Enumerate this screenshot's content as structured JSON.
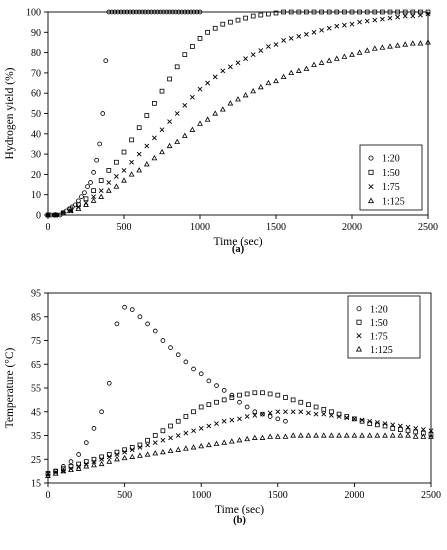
{
  "chart_data": [
    {
      "type": "scatter",
      "panel_label": "(a)",
      "xlabel": "Time (sec)",
      "ylabel": "Hydrogen yield (%)",
      "xlim": [
        0,
        2500
      ],
      "ylim": [
        0,
        100
      ],
      "xticks": [
        0,
        500,
        1000,
        1500,
        2000,
        2500
      ],
      "yticks": [
        0,
        10,
        20,
        30,
        40,
        50,
        60,
        70,
        80,
        90,
        100
      ],
      "grid": false,
      "legend_position": "bottom-right",
      "series": [
        {
          "name": "1:20",
          "marker": "circle",
          "x": [
            0,
            20,
            40,
            60,
            80,
            100,
            120,
            140,
            160,
            180,
            200,
            220,
            240,
            260,
            280,
            300,
            320,
            340,
            360,
            380,
            400,
            420,
            440,
            460,
            480,
            500,
            520,
            540,
            560,
            580,
            600,
            620,
            640,
            660,
            680,
            700,
            720,
            740,
            760,
            780,
            800,
            820,
            840,
            860,
            880,
            900,
            920,
            940,
            960,
            980,
            1000
          ],
          "y": [
            0,
            0,
            0,
            0,
            0,
            1,
            2,
            3,
            4,
            5,
            7,
            9,
            11,
            14,
            16,
            21,
            27,
            35,
            50,
            76,
            100,
            100,
            100,
            100,
            100,
            100,
            100,
            100,
            100,
            100,
            100,
            100,
            100,
            100,
            100,
            100,
            100,
            100,
            100,
            100,
            100,
            100,
            100,
            100,
            100,
            100,
            100,
            100,
            100,
            100,
            100
          ]
        },
        {
          "name": "1:50",
          "marker": "square",
          "x": [
            0,
            50,
            100,
            150,
            200,
            250,
            300,
            350,
            400,
            450,
            500,
            550,
            600,
            650,
            700,
            750,
            800,
            850,
            900,
            950,
            1000,
            1050,
            1100,
            1150,
            1200,
            1250,
            1300,
            1350,
            1400,
            1450,
            1500,
            1550,
            1600,
            1650,
            1700,
            1750,
            1800,
            1850,
            1900,
            1950,
            2000,
            2050,
            2100,
            2150,
            2200,
            2250,
            2300,
            2350,
            2400,
            2450,
            2500
          ],
          "y": [
            0,
            0,
            1,
            3,
            5,
            8,
            12,
            17,
            22,
            26,
            31,
            37,
            43,
            49,
            55,
            61,
            67,
            73,
            79,
            83,
            87,
            90,
            92,
            94,
            95,
            96,
            97,
            98,
            98.5,
            99,
            99.5,
            100,
            100,
            100,
            100,
            100,
            100,
            100,
            100,
            100,
            100,
            100,
            100,
            100,
            100,
            100,
            100,
            100,
            100,
            100,
            100
          ]
        },
        {
          "name": "1:75",
          "marker": "x",
          "x": [
            0,
            50,
            100,
            150,
            200,
            250,
            300,
            350,
            400,
            450,
            500,
            550,
            600,
            650,
            700,
            750,
            800,
            850,
            900,
            950,
            1000,
            1050,
            1100,
            1150,
            1200,
            1250,
            1300,
            1350,
            1400,
            1450,
            1500,
            1550,
            1600,
            1650,
            1700,
            1750,
            1800,
            1850,
            1900,
            1950,
            2000,
            2050,
            2100,
            2150,
            2200,
            2250,
            2300,
            2350,
            2400,
            2450,
            2500
          ],
          "y": [
            0,
            0,
            1,
            2,
            4,
            6,
            9,
            12,
            16,
            19,
            22,
            26,
            30,
            34,
            38,
            42,
            46,
            50,
            54,
            58,
            62,
            65,
            68,
            71,
            73,
            75,
            77,
            79,
            81,
            83,
            84,
            86,
            87,
            88,
            89,
            90,
            91,
            92,
            93,
            93.5,
            94,
            95,
            95.5,
            96,
            96.5,
            97,
            97.5,
            98,
            98,
            98.5,
            99
          ]
        },
        {
          "name": "1:125",
          "marker": "triangle",
          "x": [
            0,
            50,
            100,
            150,
            200,
            250,
            300,
            350,
            400,
            450,
            500,
            550,
            600,
            650,
            700,
            750,
            800,
            850,
            900,
            950,
            1000,
            1050,
            1100,
            1150,
            1200,
            1250,
            1300,
            1350,
            1400,
            1450,
            1500,
            1550,
            1600,
            1650,
            1700,
            1750,
            1800,
            1850,
            1900,
            1950,
            2000,
            2050,
            2100,
            2150,
            2200,
            2250,
            2300,
            2350,
            2400,
            2450,
            2500
          ],
          "y": [
            0,
            0,
            1,
            2,
            3,
            5,
            7,
            9,
            12,
            14,
            17,
            20,
            22,
            25,
            28,
            31,
            34,
            36,
            39,
            42,
            45,
            47,
            50,
            52,
            55,
            57,
            59,
            61,
            63,
            65,
            66,
            68,
            70,
            71,
            72,
            74,
            75,
            76,
            77,
            78,
            79,
            80,
            81,
            82,
            82.5,
            83,
            83.5,
            84,
            84.5,
            84.5,
            85
          ]
        }
      ]
    },
    {
      "type": "scatter",
      "panel_label": "(b)",
      "xlabel": "Time (sec)",
      "ylabel": "Temperature (°C)",
      "xlim": [
        0,
        2500
      ],
      "ylim": [
        15,
        95
      ],
      "xticks": [
        0,
        500,
        1000,
        1500,
        2000,
        2500
      ],
      "yticks": [
        15,
        25,
        35,
        45,
        55,
        65,
        75,
        85,
        95
      ],
      "grid": false,
      "legend_position": "top-right",
      "series": [
        {
          "name": "1:20",
          "marker": "circle",
          "x": [
            50,
            100,
            150,
            200,
            250,
            300,
            350,
            400,
            450,
            500,
            550,
            600,
            650,
            700,
            750,
            800,
            850,
            900,
            950,
            1000,
            1050,
            1100,
            1150,
            1200,
            1250,
            1300,
            1350,
            1400,
            1450,
            1500,
            1550
          ],
          "y": [
            20,
            22,
            24,
            27,
            32,
            38,
            45,
            57,
            82,
            89,
            88,
            85,
            82,
            79,
            75,
            72,
            69,
            66,
            63,
            61,
            58,
            56,
            54,
            52,
            49,
            47,
            45,
            44,
            43,
            42,
            41
          ]
        },
        {
          "name": "1:50",
          "marker": "square",
          "x": [
            0,
            50,
            100,
            150,
            200,
            250,
            300,
            350,
            400,
            450,
            500,
            550,
            600,
            650,
            700,
            750,
            800,
            850,
            900,
            950,
            1000,
            1050,
            1100,
            1150,
            1200,
            1250,
            1300,
            1350,
            1400,
            1450,
            1500,
            1550,
            1600,
            1650,
            1700,
            1750,
            1800,
            1850,
            1900,
            1950,
            2000,
            2050,
            2100,
            2150,
            2200,
            2250,
            2300,
            2350,
            2400,
            2450,
            2500
          ],
          "y": [
            19,
            20,
            21,
            22,
            23,
            24,
            25,
            26,
            27,
            28,
            29,
            30,
            31,
            33,
            35,
            37,
            39,
            41,
            43,
            45,
            47,
            48,
            49,
            50,
            51,
            52,
            52.5,
            53,
            53,
            52.5,
            52,
            51,
            50,
            49,
            48,
            47,
            46,
            45,
            44,
            43,
            42,
            41,
            40,
            39.5,
            39,
            38,
            37.5,
            37,
            36.5,
            36,
            35.5
          ]
        },
        {
          "name": "1:75",
          "marker": "x",
          "x": [
            0,
            50,
            100,
            150,
            200,
            250,
            300,
            350,
            400,
            450,
            500,
            550,
            600,
            650,
            700,
            750,
            800,
            850,
            900,
            950,
            1000,
            1050,
            1100,
            1150,
            1200,
            1250,
            1300,
            1350,
            1400,
            1450,
            1500,
            1550,
            1600,
            1650,
            1700,
            1750,
            1800,
            1850,
            1900,
            1950,
            2000,
            2050,
            2100,
            2150,
            2200,
            2250,
            2300,
            2350,
            2400,
            2450,
            2500
          ],
          "y": [
            19,
            19.5,
            20,
            21,
            22,
            23,
            24,
            25,
            26,
            27,
            28,
            29,
            30,
            31,
            32,
            33,
            34,
            35,
            36,
            37,
            38,
            39,
            40,
            41,
            41.5,
            42,
            43,
            43.5,
            44,
            44.5,
            45,
            45,
            45,
            45,
            44.5,
            44,
            44,
            43.5,
            43,
            42.5,
            42,
            41.5,
            41,
            40.5,
            40,
            39.5,
            39,
            38.5,
            38,
            37.5,
            37
          ]
        },
        {
          "name": "1:125",
          "marker": "triangle",
          "x": [
            0,
            50,
            100,
            150,
            200,
            250,
            300,
            350,
            400,
            450,
            500,
            550,
            600,
            650,
            700,
            750,
            800,
            850,
            900,
            950,
            1000,
            1050,
            1100,
            1150,
            1200,
            1250,
            1300,
            1350,
            1400,
            1450,
            1500,
            1550,
            1600,
            1650,
            1700,
            1750,
            1800,
            1850,
            1900,
            1950,
            2000,
            2050,
            2100,
            2150,
            2200,
            2250,
            2300,
            2350,
            2400,
            2450,
            2500
          ],
          "y": [
            18,
            19,
            20,
            20.5,
            21,
            22,
            22.5,
            23,
            24,
            25,
            25.5,
            26,
            26.5,
            27,
            27.5,
            28,
            28.5,
            29,
            29.5,
            30,
            30.5,
            31,
            31.5,
            32,
            32.5,
            33,
            33.5,
            34,
            34,
            34.5,
            34.5,
            34.5,
            35,
            35,
            35,
            35,
            35,
            35,
            35,
            35,
            35,
            35,
            35,
            35,
            35,
            35,
            35,
            35,
            34.5,
            34.5,
            34.5
          ]
        }
      ]
    }
  ]
}
